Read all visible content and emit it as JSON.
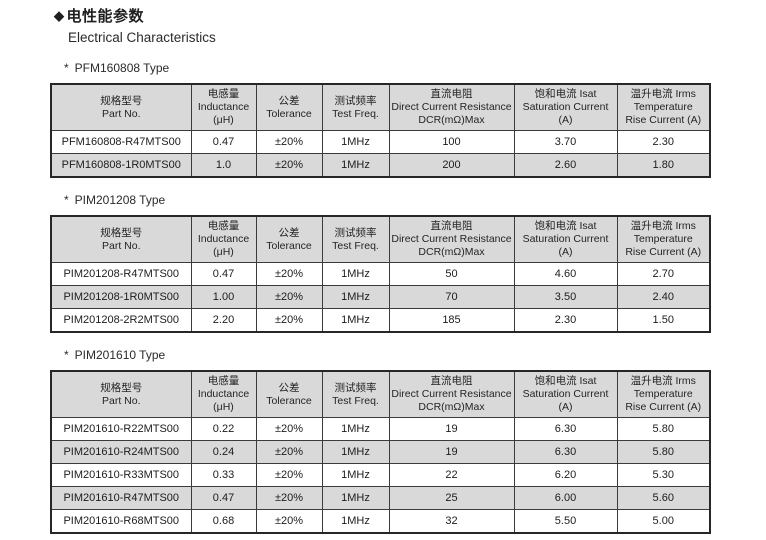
{
  "header": {
    "bullet": "◆",
    "title_cn": "电性能参数",
    "title_en": "Electrical Characteristics"
  },
  "colors": {
    "header_bg": "#d9d9d9",
    "stripe_bg": "#d9d9d9",
    "border": "#3b3b3b",
    "text": "#1f1f1f",
    "page_bg": "#ffffff"
  },
  "table_columns": [
    {
      "name": "part-no",
      "lines": [
        "规格型号",
        "Part No."
      ]
    },
    {
      "name": "inductance",
      "lines": [
        "电感量",
        "Inductance",
        "(μH)"
      ]
    },
    {
      "name": "tolerance",
      "lines": [
        "公差",
        "Tolerance"
      ]
    },
    {
      "name": "test-freq",
      "lines": [
        "测试频率",
        "Test Freq."
      ]
    },
    {
      "name": "dcr",
      "lines": [
        "直流电阻",
        "Direct Current Resistance",
        "DCR(mΩ)Max"
      ]
    },
    {
      "name": "isat",
      "lines": [
        "饱和电流  Isat",
        "Saturation Current",
        "(A)"
      ]
    },
    {
      "name": "irms",
      "lines": [
        "温升电流  Irms",
        "Temperature",
        "Rise Current (A)"
      ]
    }
  ],
  "tables": [
    {
      "heading_marker": "*",
      "heading_label": "PFM160808 Type",
      "rows": [
        [
          "PFM160808-R47MTS00",
          "0.47",
          "±20%",
          "1MHz",
          "100",
          "3.70",
          "2.30"
        ],
        [
          "PFM160808-1R0MTS00",
          "1.0",
          "±20%",
          "1MHz",
          "200",
          "2.60",
          "1.80"
        ]
      ]
    },
    {
      "heading_marker": "*",
      "heading_label": "PIM201208 Type",
      "rows": [
        [
          "PIM201208-R47MTS00",
          "0.47",
          "±20%",
          "1MHz",
          "50",
          "4.60",
          "2.70"
        ],
        [
          "PIM201208-1R0MTS00",
          "1.00",
          "±20%",
          "1MHz",
          "70",
          "3.50",
          "2.40"
        ],
        [
          "PIM201208-2R2MTS00",
          "2.20",
          "±20%",
          "1MHz",
          "185",
          "2.30",
          "1.50"
        ]
      ]
    },
    {
      "heading_marker": "*",
      "heading_label": "PIM201610 Type",
      "rows": [
        [
          "PIM201610-R22MTS00",
          "0.22",
          "±20%",
          "1MHz",
          "19",
          "6.30",
          "5.80"
        ],
        [
          "PIM201610-R24MTS00",
          "0.24",
          "±20%",
          "1MHz",
          "19",
          "6.30",
          "5.80"
        ],
        [
          "PIM201610-R33MTS00",
          "0.33",
          "±20%",
          "1MHz",
          "22",
          "6.20",
          "5.30"
        ],
        [
          "PIM201610-R47MTS00",
          "0.47",
          "±20%",
          "1MHz",
          "25",
          "6.00",
          "5.60"
        ],
        [
          "PIM201610-R68MTS00",
          "0.68",
          "±20%",
          "1MHz",
          "32",
          "5.50",
          "5.00"
        ]
      ]
    }
  ]
}
